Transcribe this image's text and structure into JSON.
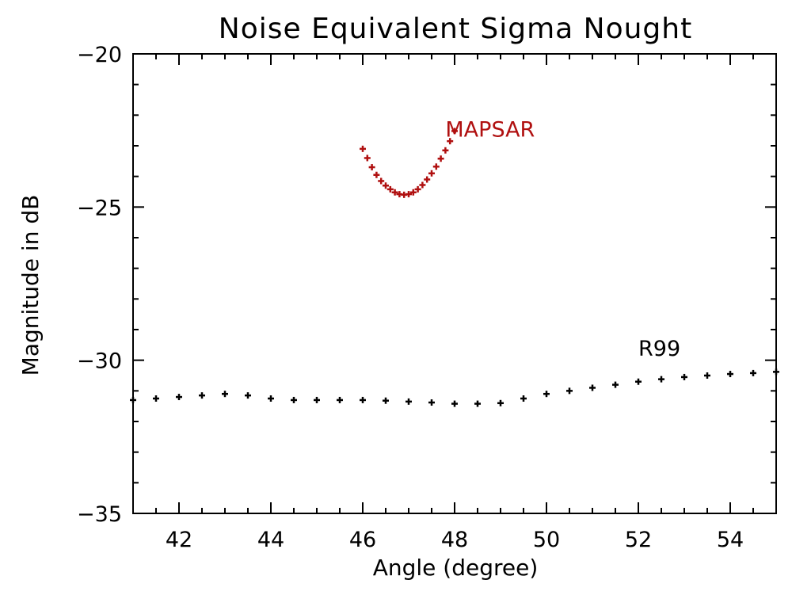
{
  "chart_data": {
    "type": "scatter",
    "title": "Noise Equivalent Sigma Nought",
    "xlabel": "Angle (degree)",
    "ylabel": "Magnitude in dB",
    "xlim": [
      41,
      55
    ],
    "ylim": [
      -35,
      -20
    ],
    "xticks": [
      42,
      44,
      46,
      48,
      50,
      52,
      54
    ],
    "yticks": [
      -20,
      -25,
      -30,
      -35
    ],
    "grid": false,
    "series": [
      {
        "name": "MAPSAR",
        "color": "#b01010",
        "marker": "plus",
        "label_pos": [
          47.8,
          -22.7
        ],
        "x": [
          46.0,
          46.1,
          46.2,
          46.3,
          46.4,
          46.5,
          46.6,
          46.7,
          46.8,
          46.9,
          47.0,
          47.1,
          47.2,
          47.3,
          47.4,
          47.5,
          47.6,
          47.7,
          47.8,
          47.9,
          48.0
        ],
        "y": [
          -23.1,
          -23.4,
          -23.7,
          -23.95,
          -24.15,
          -24.3,
          -24.42,
          -24.52,
          -24.58,
          -24.6,
          -24.58,
          -24.52,
          -24.42,
          -24.28,
          -24.1,
          -23.9,
          -23.68,
          -23.42,
          -23.15,
          -22.85,
          -22.52
        ]
      },
      {
        "name": "R99",
        "color": "#000000",
        "marker": "plus",
        "label_pos": [
          52.0,
          -29.85
        ],
        "x": [
          41.0,
          41.5,
          42.0,
          42.5,
          43.0,
          43.5,
          44.0,
          44.5,
          45.0,
          45.5,
          46.0,
          46.5,
          47.0,
          47.5,
          48.0,
          48.5,
          49.0,
          49.5,
          50.0,
          50.5,
          51.0,
          51.5,
          52.0,
          52.5,
          53.0,
          53.5,
          54.0,
          54.5,
          55.0
        ],
        "y": [
          -31.3,
          -31.25,
          -31.2,
          -31.15,
          -31.1,
          -31.15,
          -31.25,
          -31.3,
          -31.3,
          -31.3,
          -31.3,
          -31.32,
          -31.35,
          -31.38,
          -31.42,
          -31.42,
          -31.4,
          -31.25,
          -31.1,
          -31.0,
          -30.9,
          -30.8,
          -30.7,
          -30.62,
          -30.55,
          -30.5,
          -30.45,
          -30.42,
          -30.38
        ]
      }
    ]
  }
}
